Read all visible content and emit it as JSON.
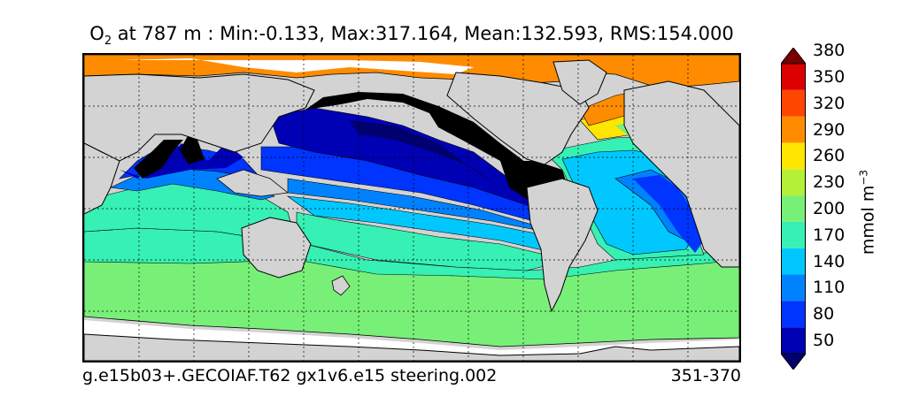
{
  "title": {
    "variable": "O",
    "subscript": "2",
    "rest": " at 787 m : Min:-0.133, Max:317.164, Mean:132.593, RMS:154.000"
  },
  "footer": {
    "case": "g.e15b03+.GECOIAF.T62 gx1v6.e15 steering.002",
    "years": "351-370"
  },
  "colorbar": {
    "label": "mmol m",
    "label_exponent": "−3",
    "ticks": [
      "50",
      "80",
      "110",
      "140",
      "170",
      "200",
      "230",
      "260",
      "290",
      "320",
      "350",
      "380"
    ],
    "colors": [
      "#00006e",
      "#0000b4",
      "#0034ff",
      "#0082ff",
      "#00c8ff",
      "#36f0b4",
      "#78f078",
      "#b4f036",
      "#ffe600",
      "#ff8c00",
      "#ff4600",
      "#dc0000",
      "#7a0000"
    ]
  },
  "map": {
    "land_color": "#d3d3d3",
    "no_data_color": "#ffffff"
  }
}
